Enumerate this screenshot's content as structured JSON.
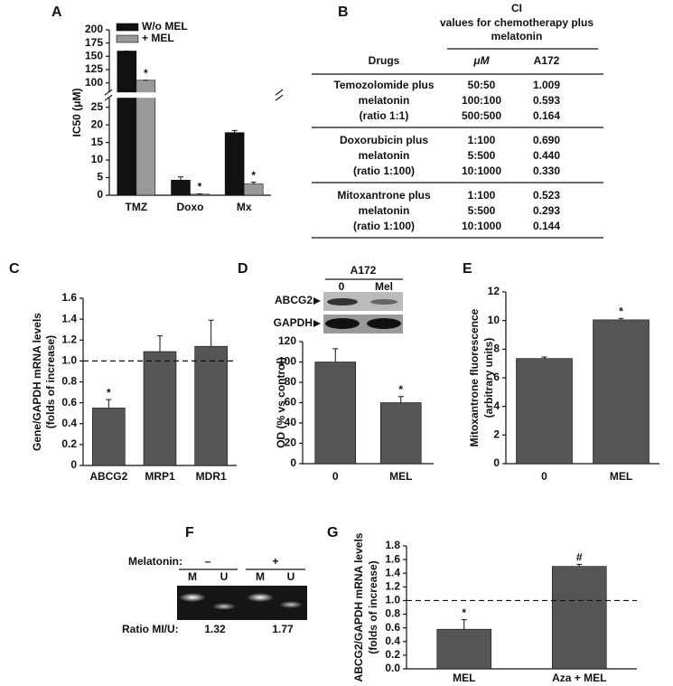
{
  "chart_data": [
    {
      "type": "bar",
      "panel": "A",
      "ylabel": [
        "IC50 (μM)"
      ],
      "categories": [
        "TMZ",
        "Doxo",
        "Mx"
      ],
      "series": [
        {
          "name": "W/o MEL",
          "color": "#111111",
          "values": [
            160,
            4.3,
            17.8
          ],
          "errors": [
            0,
            0.9,
            0.6
          ]
        },
        {
          "name": "+ MEL",
          "color": "#999999",
          "values": [
            105,
            0.3,
            3.2
          ],
          "errors": [
            0,
            0.1,
            0.5
          ],
          "markers": [
            "*",
            "*",
            "*"
          ]
        }
      ],
      "ylim": [
        0,
        200
      ],
      "axis_break": [
        25,
        100
      ],
      "yticks": [
        0,
        5,
        10,
        15,
        20,
        25,
        100,
        125,
        150,
        175,
        200
      ],
      "legend": "upper-left"
    },
    {
      "type": "bar",
      "panel": "C",
      "ylabel": [
        "Gene/GAPDH mRNA levels",
        "(folds of increase)"
      ],
      "categories": [
        "ABCG2",
        "MRP1",
        "MDR1"
      ],
      "values": [
        0.55,
        1.09,
        1.14
      ],
      "errors": [
        0.08,
        0.15,
        0.25
      ],
      "markers": [
        "*",
        null,
        null
      ],
      "color": "#555555",
      "ylim": [
        0,
        1.6
      ],
      "yticks": [
        0,
        0.2,
        0.4,
        0.6,
        0.8,
        {
          "value": 1,
          "label": "1.0"
        },
        1.2,
        1.4,
        1.6
      ],
      "reference_line": 1
    },
    {
      "type": "bar",
      "panel": "D",
      "ylabel": [
        "OD (% vs control)"
      ],
      "categories": [
        "0",
        "MEL"
      ],
      "values": [
        100,
        60
      ],
      "errors": [
        13,
        6
      ],
      "markers": [
        null,
        "*"
      ],
      "color": "#555555",
      "ylim": [
        0,
        120
      ],
      "yticks": [
        0,
        20,
        40,
        60,
        80,
        100,
        120
      ]
    },
    {
      "type": "bar",
      "panel": "E",
      "ylabel": [
        "Mitoxantrone fluorescence",
        "(arbitrary units)"
      ],
      "categories": [
        "0",
        "MEL"
      ],
      "values": [
        7.35,
        10.05
      ],
      "errors": [
        0.1,
        0.1
      ],
      "markers": [
        null,
        "*"
      ],
      "color": "#555555",
      "ylim": [
        0,
        12
      ],
      "yticks": [
        0,
        2,
        4,
        6,
        8,
        10,
        12
      ]
    },
    {
      "type": "bar",
      "panel": "G",
      "ylabel": [
        "ABCG2/GAPDH mRNA levels",
        "(folds of increase)"
      ],
      "categories": [
        "MEL",
        "Aza + MEL"
      ],
      "values": [
        0.58,
        1.5
      ],
      "errors": [
        0.14,
        0.03
      ],
      "markers": [
        "*",
        "#"
      ],
      "color": "#555555",
      "ylim": [
        0,
        1.8
      ],
      "yticks": [
        {
          "value": 0,
          "label": "0.0"
        },
        0.2,
        0.4,
        0.6,
        0.8,
        {
          "value": 1,
          "label": "1.0"
        },
        1.2,
        1.4,
        1.6,
        1.8
      ],
      "reference_line": 1
    }
  ],
  "table": {
    "panel": "B",
    "title": "CI",
    "subtitle": [
      "values for chemotherapy plus",
      "melatonin"
    ],
    "columns": [
      "Drugs",
      "μM",
      "A172"
    ],
    "groups": [
      {
        "rows": [
          [
            "Temozolomide plus",
            "50:50",
            "1.009"
          ],
          [
            "melatonin",
            "100:100",
            "0.593"
          ],
          [
            "(ratio 1:1)",
            "500:500",
            "0.164"
          ]
        ]
      },
      {
        "rows": [
          [
            "Doxorubicin plus",
            "1:100",
            "0.690"
          ],
          [
            "melatonin",
            "5:500",
            "0.440"
          ],
          [
            "(ratio 1:100)",
            "10:1000",
            "0.330"
          ]
        ]
      },
      {
        "rows": [
          [
            "Mitoxantrone plus",
            "1:100",
            "0.523"
          ],
          [
            "melatonin",
            "5:500",
            "0.293"
          ],
          [
            "(ratio 1:100)",
            "10:1000",
            "0.144"
          ]
        ]
      }
    ]
  },
  "blot": {
    "title": "A172",
    "lanes": [
      "0",
      "Mel"
    ],
    "rows": [
      "ABCG2",
      "GAPDH"
    ]
  },
  "gel": {
    "panel": "F",
    "treatment_label": "Melatonin:",
    "conditions": [
      "–",
      "+"
    ],
    "lanes": [
      "M",
      "U",
      "M",
      "U"
    ],
    "ratio_label": "Ratio MI/U:",
    "ratios": [
      1.32,
      1.77
    ]
  }
}
